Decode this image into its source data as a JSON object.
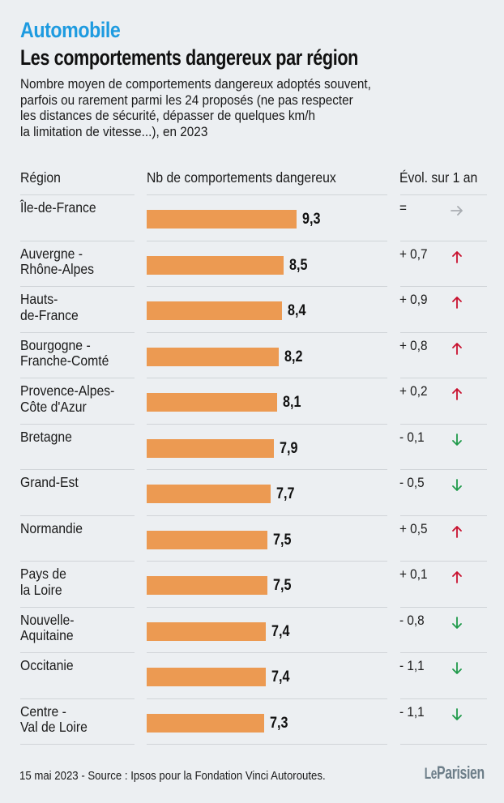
{
  "kicker": "Automobile",
  "title": "Les comportements dangereux par région",
  "subtitle_lines": [
    "Nombre moyen de comportements dangereux adoptés souvent,",
    "parfois ou rarement parmi les 24 proposés (ne pas respecter",
    "les distances de sécurité, dépasser de quelques km/h",
    "la limitation de vitesse...), en 2023"
  ],
  "headers": {
    "region": "Région",
    "value": "Nb de comportements dangereux",
    "evolution": "Évol. sur 1 an"
  },
  "colors": {
    "kicker": "#1e9be0",
    "bar": "#ec9a52",
    "up": "#c8102e",
    "down": "#1f9a4a",
    "flat": "#a9adb2"
  },
  "chart_data": {
    "type": "bar",
    "orientation": "horizontal",
    "title": "Les comportements dangereux par région",
    "xlabel": "Nb de comportements dangereux",
    "ylabel": "Région",
    "categories": [
      "Île-de-France",
      "Auvergne - Rhône-Alpes",
      "Hauts-de-France",
      "Bourgogne - Franche-Comté",
      "Provence-Alpes-Côte d'Azur",
      "Bretagne",
      "Grand-Est",
      "Normandie",
      "Pays de la Loire",
      "Nouvelle-Aquitaine",
      "Occitanie",
      "Centre - Val de Loire"
    ],
    "category_lines": [
      [
        "Île-de-France"
      ],
      [
        "Auvergne -",
        "Rhône-Alpes"
      ],
      [
        "Hauts-",
        "de-France"
      ],
      [
        "Bourgogne -",
        "Franche-Comté"
      ],
      [
        "Provence-Alpes-",
        "Côte d'Azur"
      ],
      [
        "Bretagne"
      ],
      [
        "Grand-Est"
      ],
      [
        "Normandie"
      ],
      [
        "Pays de",
        "la Loire"
      ],
      [
        "Nouvelle-",
        "Aquitaine"
      ],
      [
        "Occitanie"
      ],
      [
        "Centre -",
        "Val de Loire"
      ]
    ],
    "values": [
      9.3,
      8.5,
      8.4,
      8.2,
      8.1,
      7.9,
      7.7,
      7.5,
      7.5,
      7.4,
      7.4,
      7.3
    ],
    "value_labels": [
      "9,3",
      "8,5",
      "8,4",
      "8,2",
      "8,1",
      "7,9",
      "7,7",
      "7,5",
      "7,5",
      "7,4",
      "7,4",
      "7,3"
    ],
    "evolution": [
      0,
      0.7,
      0.9,
      0.8,
      0.2,
      -0.1,
      -0.5,
      0.5,
      0.1,
      -0.8,
      -1.1,
      -1.1
    ],
    "evolution_labels": [
      "=",
      "+ 0,7",
      "+ 0,9",
      "+ 0,8",
      "+ 0,2",
      "- 0,1",
      "- 0,5",
      "+ 0,5",
      "+ 0,1",
      "- 0,8",
      "- 1,1",
      "- 1,1"
    ],
    "evolution_direction": [
      "flat",
      "up",
      "up",
      "up",
      "up",
      "down",
      "down",
      "up",
      "up",
      "down",
      "down",
      "down"
    ],
    "xlim": [
      0,
      10
    ],
    "grid": false,
    "legend": "none"
  },
  "footer": "15 mai 2023 - Source : Ipsos pour la Fondation Vinci Autoroutes.",
  "logo": {
    "le": "Le",
    "name": "Parisien"
  }
}
